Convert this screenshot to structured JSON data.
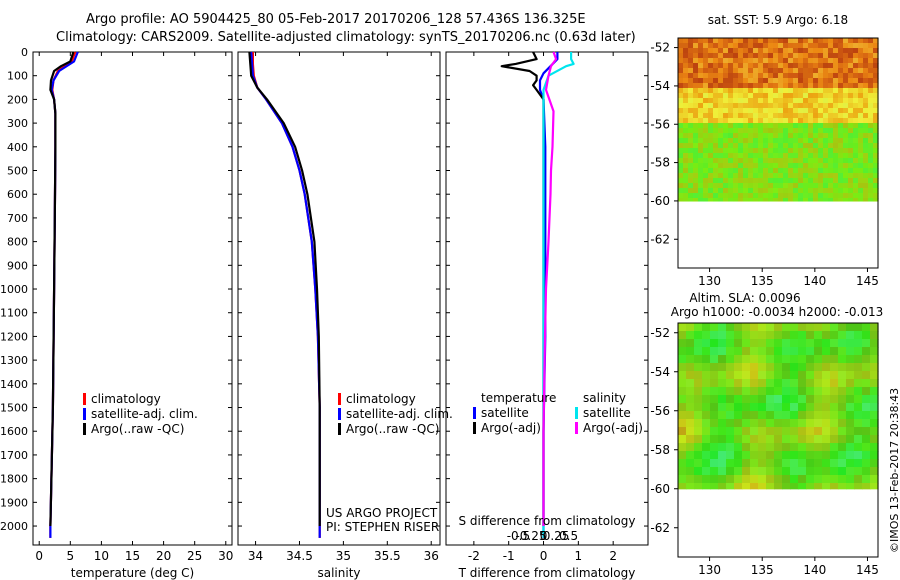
{
  "header": {
    "line1": "Argo profile: AO 5904425_80 05-Feb-2017 20170206_128 57.436S 136.325E",
    "line2": "Climatology: CARS2009. Satellite-adjusted climatology: synTS_20170206.nc (0.63d later)"
  },
  "colors": {
    "climatology": "#ff0000",
    "satellite": "#0000ff",
    "argo": "#000000",
    "sal_satellite": "#00e5ee",
    "sal_argo": "#ff00ff"
  },
  "chart_data": [
    {
      "type": "line",
      "id": "temperature",
      "xlabel": "temperature (deg C)",
      "ylabel": "",
      "xlim": [
        -1,
        31
      ],
      "ylim": [
        2080,
        0
      ],
      "xticks": [
        0,
        5,
        10,
        15,
        20,
        25,
        30
      ],
      "yticks": [
        0,
        100,
        200,
        300,
        400,
        500,
        600,
        700,
        800,
        900,
        1000,
        1100,
        1200,
        1300,
        1400,
        1500,
        1600,
        1700,
        1800,
        1900,
        2000
      ],
      "legend": [
        "climatology",
        "satellite-adj. clim.",
        "Argo(..raw -QC)"
      ],
      "series": [
        {
          "name": "climatology",
          "depth": [
            0,
            40,
            80,
            120,
            160,
            200,
            260,
            400,
            700,
            1000,
            1500,
            2000,
            2050
          ],
          "values": [
            5.8,
            5.2,
            3.0,
            2.3,
            2.1,
            2.4,
            2.6,
            2.6,
            2.5,
            2.4,
            2.2,
            1.8,
            1.8
          ]
        },
        {
          "name": "satellite-adj. clim.",
          "depth": [
            0,
            40,
            80,
            120,
            160,
            200,
            260,
            400,
            700,
            1000,
            1500,
            2000,
            2050
          ],
          "values": [
            6.2,
            5.6,
            3.2,
            2.3,
            2.0,
            2.4,
            2.6,
            2.6,
            2.5,
            2.4,
            2.2,
            1.8,
            1.8
          ]
        },
        {
          "name": "Argo(..raw -QC)",
          "depth": [
            0,
            40,
            60,
            80,
            120,
            160,
            200,
            260,
            400,
            700,
            1000,
            1500,
            2000
          ],
          "values": [
            5.5,
            5.0,
            3.5,
            2.4,
            1.9,
            1.8,
            2.4,
            2.6,
            2.6,
            2.5,
            2.4,
            2.2,
            1.8
          ]
        }
      ]
    },
    {
      "type": "line",
      "id": "salinity",
      "xlabel": "salinity",
      "xlim": [
        33.8,
        36.1
      ],
      "ylim": [
        2080,
        0
      ],
      "xticks": [
        34,
        34.5,
        35,
        35.5,
        36
      ],
      "xticklabels": [
        "34",
        "34.5",
        "35",
        "35.5",
        "36"
      ],
      "legend": [
        "climatology",
        "satellite-adj. clim.",
        "Argo(..raw -QC)"
      ],
      "annotation": [
        "US ARGO PROJECT",
        "PI: STEPHEN RISER"
      ],
      "series": [
        {
          "name": "climatology",
          "depth": [
            0,
            50,
            100,
            150,
            200,
            300,
            400,
            500,
            600,
            800,
            1000,
            1200,
            1500,
            2050
          ],
          "values": [
            33.97,
            33.97,
            33.98,
            34.02,
            34.12,
            34.3,
            34.42,
            34.5,
            34.56,
            34.64,
            34.68,
            34.71,
            34.73,
            34.73
          ]
        },
        {
          "name": "satellite-adj. clim.",
          "depth": [
            0,
            50,
            100,
            150,
            200,
            300,
            400,
            500,
            600,
            800,
            1000,
            1200,
            1500,
            2050
          ],
          "values": [
            33.95,
            33.96,
            33.97,
            34.02,
            34.12,
            34.3,
            34.42,
            34.5,
            34.56,
            34.64,
            34.68,
            34.71,
            34.73,
            34.73
          ]
        },
        {
          "name": "Argo(..raw -QC)",
          "depth": [
            0,
            50,
            100,
            150,
            200,
            300,
            400,
            500,
            600,
            800,
            1000,
            1200,
            1500,
            2000
          ],
          "values": [
            33.93,
            33.94,
            33.95,
            34.02,
            34.13,
            34.32,
            34.45,
            34.53,
            34.59,
            34.67,
            34.7,
            34.72,
            34.73,
            34.73
          ]
        }
      ]
    },
    {
      "type": "line",
      "id": "difference",
      "xlabel": "T difference from climatology",
      "xlim": [
        -2.8,
        3.0
      ],
      "ylim": [
        2080,
        0
      ],
      "xticks": [
        -2,
        -1,
        0,
        1,
        2
      ],
      "top_label": "S difference from climatology",
      "sticks_values": [
        -0.5,
        -0.25,
        0,
        0.25,
        0.5
      ],
      "sticks_labels": [
        "-0.5",
        "-0.25",
        "0",
        "0.25",
        "0.5"
      ],
      "legend_titles": [
        "temperature",
        "salinity"
      ],
      "legend": [
        "satellite",
        "Argo(-adj)",
        "satellite",
        "Argo(-adj)"
      ],
      "series": [
        {
          "name": "T satellite",
          "depth": [
            0,
            30,
            60,
            90,
            120,
            160,
            200,
            400,
            800,
            1200,
            1600,
            2050
          ],
          "values": [
            0.4,
            0.4,
            0.2,
            0.0,
            -0.1,
            -0.1,
            0.0,
            0.05,
            0.05,
            0.05,
            0.0,
            0.0
          ]
        },
        {
          "name": "T Argo(-adj)",
          "depth": [
            0,
            30,
            50,
            60,
            80,
            100,
            120,
            140,
            160,
            200,
            260,
            400,
            800,
            1200,
            1600,
            2000
          ],
          "values": [
            -0.3,
            -0.2,
            -0.8,
            -1.2,
            -0.4,
            -0.2,
            -0.2,
            -0.3,
            -0.2,
            0.0,
            0.0,
            0.0,
            0.0,
            0.0,
            0.0,
            0.0
          ]
        },
        {
          "name": "S satellite",
          "depth": [
            0,
            30,
            50,
            60,
            100,
            160,
            200,
            400,
            800,
            1200,
            1600,
            2050
          ],
          "values": [
            0.55,
            0.55,
            0.6,
            0.45,
            0.1,
            0.0,
            0.0,
            0.0,
            0.0,
            0.0,
            0.0,
            0.0
          ]
        },
        {
          "name": "S Argo(-adj)",
          "depth": [
            0,
            30,
            60,
            100,
            160,
            250,
            400,
            500,
            600,
            800,
            1000,
            1200,
            1600,
            2000
          ],
          "values": [
            0.2,
            0.25,
            0.15,
            0.1,
            0.05,
            0.2,
            0.18,
            0.15,
            0.14,
            0.1,
            0.05,
            0.03,
            0.0,
            0.0
          ]
        }
      ]
    },
    {
      "type": "heatmap",
      "id": "sst",
      "title": "sat. SST: 5.9  Argo: 6.18",
      "xlim": [
        127,
        146
      ],
      "ylim": [
        -63.5,
        -51.5
      ],
      "xticks": [
        130,
        135,
        140,
        145
      ],
      "yticks": [
        -52,
        -54,
        -56,
        -58,
        -60,
        -62
      ],
      "coverage_lat": -60
    },
    {
      "type": "heatmap",
      "id": "sla",
      "title_lines": [
        "Altim. SLA: 0.0096",
        "Argo h1000: -0.0034  h2000: -0.013"
      ],
      "xlim": [
        127,
        146
      ],
      "ylim": [
        -63.5,
        -51.5
      ],
      "xticks": [
        130,
        135,
        140,
        145
      ],
      "yticks": [
        -52,
        -54,
        -56,
        -58,
        -60,
        -62
      ],
      "coverage_lat": -60
    }
  ],
  "footer": {
    "stamp": "©IMOS 13-Feb-2017 20:38:43"
  }
}
